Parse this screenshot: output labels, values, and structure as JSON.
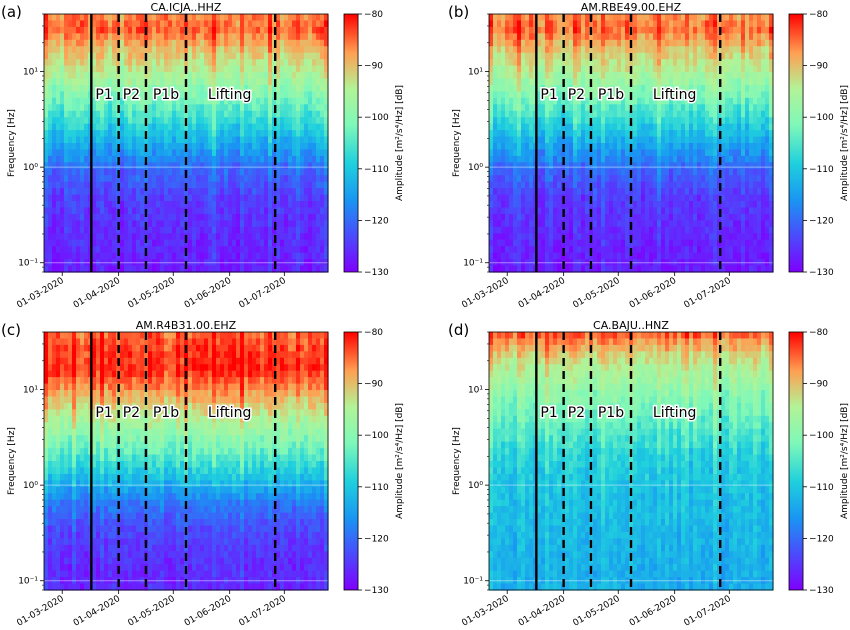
{
  "chart_data": [
    {
      "type": "heatmap",
      "panel_label": "(a)",
      "title": "CA.ICJA..HHZ",
      "ylabel": "Frequency [Hz]",
      "colorbar_label": "Amplitude [m²/s⁴/Hz] [dB]",
      "colorbar_ticks": [
        "-80",
        "-90",
        "-100",
        "-110",
        "-120",
        "-130"
      ],
      "clim": [
        -130,
        -80
      ],
      "x_tick_labels": [
        "01-03-2020",
        "01-04-2020",
        "01-05-2020",
        "01-06-2020",
        "01-07-2020"
      ],
      "x_tick_dates": [
        "2020-03-01",
        "2020-04-01",
        "2020-05-01",
        "2020-06-01",
        "2020-07-01"
      ],
      "x_range": [
        "2020-02-20",
        "2020-07-25"
      ],
      "y_tick_labels": [
        "10¹",
        "10⁰",
        "10⁻¹"
      ],
      "y_tick_values": [
        10,
        1,
        0.1
      ],
      "y_scale": "log",
      "y_range": [
        0.08,
        40
      ],
      "high_band_level": "high",
      "phase_lines": [
        {
          "date": "2020-03-17",
          "style": "solid"
        },
        {
          "date": "2020-04-01",
          "style": "dashed"
        },
        {
          "date": "2020-04-16",
          "style": "dashed"
        },
        {
          "date": "2020-05-08",
          "style": "dashed"
        },
        {
          "date": "2020-06-26",
          "style": "dashed"
        }
      ],
      "phase_labels": [
        {
          "text": "P1",
          "date": "2020-03-24"
        },
        {
          "text": "P2",
          "date": "2020-04-08"
        },
        {
          "text": "P1b",
          "date": "2020-04-27"
        },
        {
          "text": "Lifting",
          "date": "2020-06-01"
        }
      ]
    },
    {
      "type": "heatmap",
      "panel_label": "(b)",
      "title": "AM.RBE49.00.EHZ",
      "ylabel": "Frequency [Hz]",
      "colorbar_label": "Amplitude [m²/s⁴/Hz] [dB]",
      "colorbar_ticks": [
        "-80",
        "-90",
        "-100",
        "-110",
        "-120",
        "-130"
      ],
      "clim": [
        -130,
        -80
      ],
      "x_tick_labels": [
        "01-03-2020",
        "01-04-2020",
        "01-05-2020",
        "01-06-2020",
        "01-07-2020"
      ],
      "x_tick_dates": [
        "2020-03-01",
        "2020-04-01",
        "2020-05-01",
        "2020-06-01",
        "2020-07-01"
      ],
      "x_range": [
        "2020-02-20",
        "2020-07-25"
      ],
      "y_tick_labels": [
        "10¹",
        "10⁰",
        "10⁻¹"
      ],
      "y_tick_values": [
        10,
        1,
        0.1
      ],
      "y_scale": "log",
      "y_range": [
        0.08,
        40
      ],
      "high_band_level": "high",
      "phase_lines": [
        {
          "date": "2020-03-17",
          "style": "solid"
        },
        {
          "date": "2020-04-01",
          "style": "dashed"
        },
        {
          "date": "2020-04-16",
          "style": "dashed"
        },
        {
          "date": "2020-05-08",
          "style": "dashed"
        },
        {
          "date": "2020-06-26",
          "style": "dashed"
        }
      ],
      "phase_labels": [
        {
          "text": "P1",
          "date": "2020-03-24"
        },
        {
          "text": "P2",
          "date": "2020-04-08"
        },
        {
          "text": "P1b",
          "date": "2020-04-27"
        },
        {
          "text": "Lifting",
          "date": "2020-06-01"
        }
      ]
    },
    {
      "type": "heatmap",
      "panel_label": "(c)",
      "title": "AM.R4B31.00.EHZ",
      "ylabel": "Frequency [Hz]",
      "colorbar_label": "Amplitude [m²/s⁴/Hz] [dB]",
      "colorbar_ticks": [
        "-80",
        "-90",
        "-100",
        "-110",
        "-120",
        "-130"
      ],
      "clim": [
        -130,
        -80
      ],
      "x_tick_labels": [
        "01-03-2020",
        "01-04-2020",
        "01-05-2020",
        "01-06-2020",
        "01-07-2020"
      ],
      "x_tick_dates": [
        "2020-03-01",
        "2020-04-01",
        "2020-05-01",
        "2020-06-01",
        "2020-07-01"
      ],
      "x_range": [
        "2020-02-20",
        "2020-07-25"
      ],
      "y_tick_labels": [
        "10¹",
        "10⁰",
        "10⁻¹"
      ],
      "y_tick_values": [
        10,
        1,
        0.1
      ],
      "y_scale": "log",
      "y_range": [
        0.08,
        40
      ],
      "high_band_level": "very-high",
      "phase_lines": [
        {
          "date": "2020-03-17",
          "style": "solid"
        },
        {
          "date": "2020-04-01",
          "style": "dashed"
        },
        {
          "date": "2020-04-16",
          "style": "dashed"
        },
        {
          "date": "2020-05-08",
          "style": "dashed"
        },
        {
          "date": "2020-06-26",
          "style": "dashed"
        }
      ],
      "phase_labels": [
        {
          "text": "P1",
          "date": "2020-03-24"
        },
        {
          "text": "P2",
          "date": "2020-04-08"
        },
        {
          "text": "P1b",
          "date": "2020-04-27"
        },
        {
          "text": "Lifting",
          "date": "2020-06-01"
        }
      ]
    },
    {
      "type": "heatmap",
      "panel_label": "(d)",
      "title": "CA.BAJU..HNZ",
      "ylabel": "Frequency [Hz]",
      "colorbar_label": "Amplitude [m²/s⁴/Hz] [dB]",
      "colorbar_ticks": [
        "-80",
        "-90",
        "-100",
        "-110",
        "-120",
        "-130"
      ],
      "clim": [
        -130,
        -80
      ],
      "x_tick_labels": [
        "01-03-2020",
        "01-04-2020",
        "01-05-2020",
        "01-06-2020",
        "01-07-2020"
      ],
      "x_tick_dates": [
        "2020-03-01",
        "2020-04-01",
        "2020-05-01",
        "2020-06-01",
        "2020-07-01"
      ],
      "x_range": [
        "2020-02-20",
        "2020-07-25"
      ],
      "y_tick_labels": [
        "10¹",
        "10⁰",
        "10⁻¹"
      ],
      "y_tick_values": [
        10,
        1,
        0.1
      ],
      "y_scale": "log",
      "y_range": [
        0.08,
        40
      ],
      "high_band_level": "medium",
      "phase_lines": [
        {
          "date": "2020-03-17",
          "style": "solid"
        },
        {
          "date": "2020-04-01",
          "style": "dashed"
        },
        {
          "date": "2020-04-16",
          "style": "dashed"
        },
        {
          "date": "2020-05-08",
          "style": "dashed"
        },
        {
          "date": "2020-06-26",
          "style": "dashed"
        }
      ],
      "phase_labels": [
        {
          "text": "P1",
          "date": "2020-03-24"
        },
        {
          "text": "P2",
          "date": "2020-04-08"
        },
        {
          "text": "P1b",
          "date": "2020-04-27"
        },
        {
          "text": "Lifting",
          "date": "2020-06-01"
        }
      ]
    }
  ]
}
